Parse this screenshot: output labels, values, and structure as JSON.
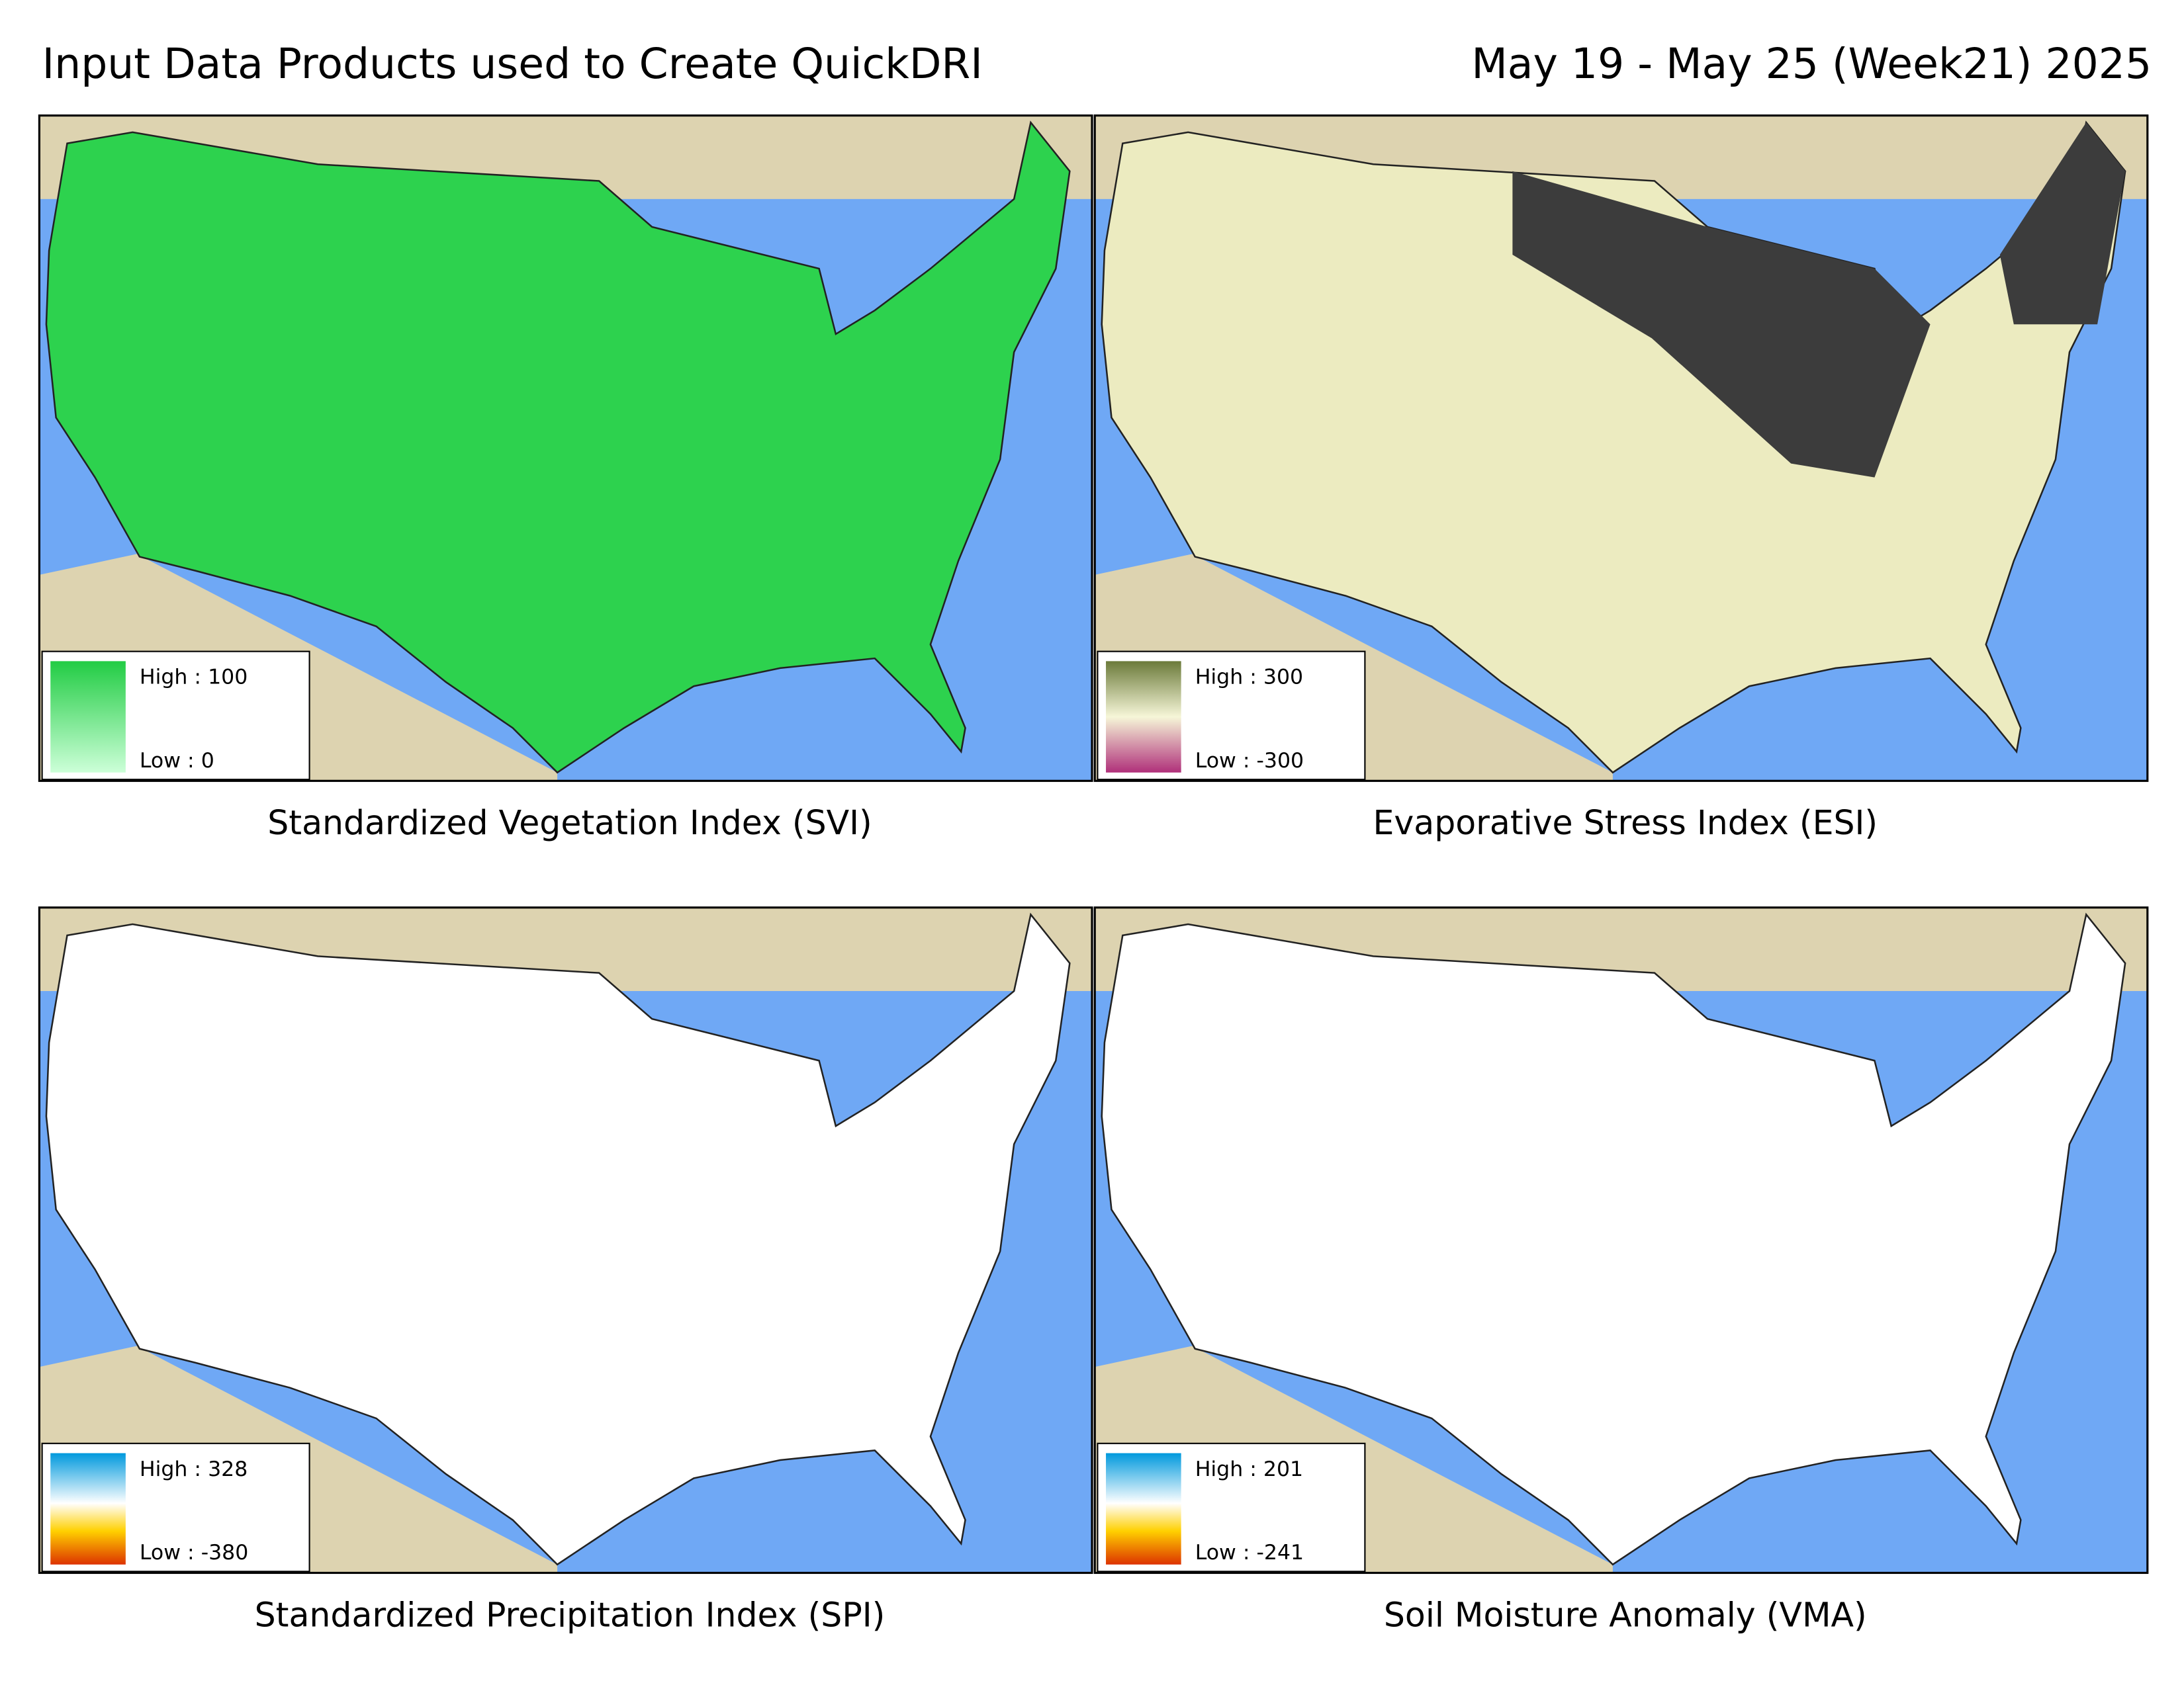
{
  "header": {
    "title": "Input Data Products used to Create QuickDRI",
    "date": "May 19 - May 25 (Week21) 2025"
  },
  "panels": [
    {
      "caption": "Standardized Vegetation Index (SVI)",
      "legend": {
        "high": "High : 100",
        "low": "Low : 0"
      }
    },
    {
      "caption": "Evaporative Stress Index (ESI)",
      "legend": {
        "high": "High : 300",
        "low": "Low : -300"
      }
    },
    {
      "caption": "Standardized Precipitation Index (SPI)",
      "legend": {
        "high": "High : 328",
        "low": "Low : -380"
      }
    },
    {
      "caption": "Soil Moisture Anomaly (VMA)",
      "legend": {
        "high": "High : 201",
        "low": "Low : -241"
      }
    }
  ]
}
